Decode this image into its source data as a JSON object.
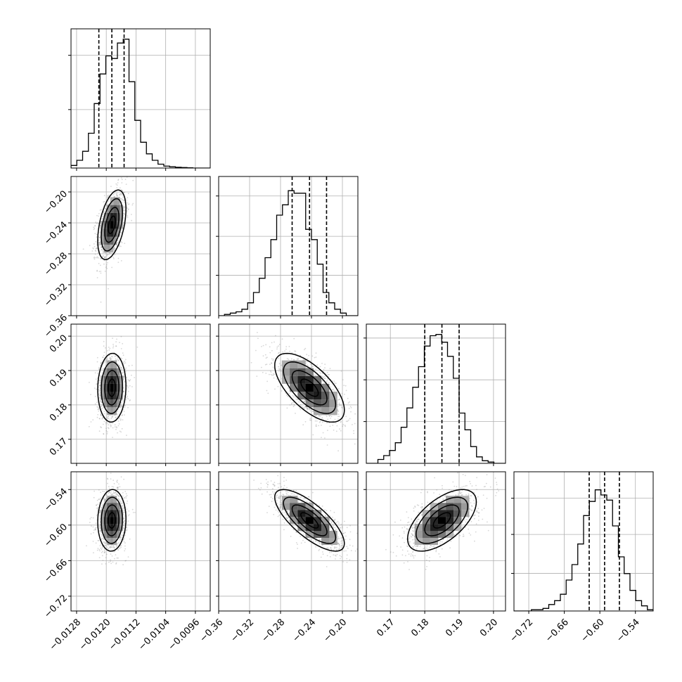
{
  "chart_data": {
    "type": "corner",
    "title": "",
    "params": [
      {
        "range": [
          -0.01295,
          -0.0092
        ],
        "ticks": [
          -0.0128,
          -0.012,
          -0.0112,
          -0.0104,
          -0.0096
        ],
        "tick_labels": [
          "−0.0128",
          "−0.0120",
          "−0.0112",
          "−0.0104",
          "−0.0096"
        ],
        "median": -0.01185,
        "q16": -0.0122,
        "q84": -0.01152,
        "std": 0.00019,
        "histogram": [
          0.02,
          0.06,
          0.13,
          0.27,
          0.5,
          0.73,
          0.87,
          0.85,
          0.97,
          1.0,
          0.67,
          0.37,
          0.2,
          0.11,
          0.06,
          0.03,
          0.015,
          0.01,
          0.006,
          0.004,
          0.002,
          0.0,
          0.0,
          0.0
        ],
        "hist_ylim": [
          0,
          1.08
        ],
        "hist_grid_fraction": [
          0.42,
          0.81
        ]
      },
      {
        "range": [
          -0.36,
          -0.18
        ],
        "ticks": [
          -0.36,
          -0.32,
          -0.28,
          -0.24,
          -0.2
        ],
        "tick_labels": [
          "−0.36",
          "−0.32",
          "−0.28",
          "−0.24",
          "−0.20"
        ],
        "median": -0.2425,
        "q16": -0.265,
        "q84": -0.2205,
        "std": 0.0225,
        "histogram": [
          0.0,
          0.01,
          0.02,
          0.03,
          0.05,
          0.1,
          0.18,
          0.29,
          0.45,
          0.59,
          0.78,
          0.86,
          0.97,
          0.95,
          0.95,
          0.67,
          0.59,
          0.4,
          0.18,
          0.1,
          0.05,
          0.02,
          0.0,
          0.0
        ],
        "hist_ylim": [
          0,
          1.08
        ],
        "hist_grid_fraction": [
          0.29,
          0.57,
          0.86
        ]
      },
      {
        "range": [
          0.163,
          0.2035
        ],
        "ticks": [
          0.17,
          0.18,
          0.19,
          0.2
        ],
        "tick_labels": [
          "0.17",
          "0.18",
          "0.19",
          "0.20"
        ],
        "median": 0.185,
        "q16": 0.18,
        "q84": 0.19,
        "std": 0.005,
        "histogram": [
          0.0,
          0.0,
          0.03,
          0.06,
          0.1,
          0.16,
          0.28,
          0.43,
          0.59,
          0.75,
          0.91,
          0.99,
          1.0,
          0.94,
          0.83,
          0.66,
          0.39,
          0.26,
          0.13,
          0.05,
          0.02,
          0.01,
          0.0,
          0.0
        ],
        "hist_ylim": [
          0,
          1.08
        ],
        "hist_grid_fraction": [
          0.3,
          0.6,
          0.9
        ]
      },
      {
        "range": [
          -0.745,
          -0.51
        ],
        "ticks": [
          -0.72,
          -0.66,
          -0.6,
          -0.54
        ],
        "tick_labels": [
          "−0.72",
          "−0.66",
          "−0.60",
          "−0.54"
        ],
        "median": -0.592,
        "q16": -0.618,
        "q84": -0.567,
        "std": 0.026,
        "histogram": [
          0.0,
          0.0,
          0.0,
          0.01,
          0.01,
          0.02,
          0.05,
          0.08,
          0.13,
          0.24,
          0.36,
          0.52,
          0.74,
          0.85,
          0.94,
          0.9,
          0.86,
          0.66,
          0.42,
          0.29,
          0.16,
          0.08,
          0.04,
          0.01
        ],
        "hist_ylim": [
          0,
          1.08
        ],
        "hist_grid_fraction": [
          0.27,
          0.55,
          0.81
        ]
      }
    ],
    "correlations": [
      [
        1,
        0.45,
        0.05,
        0.05
      ],
      [
        0.45,
        1,
        -0.65,
        -0.75
      ],
      [
        0.05,
        -0.65,
        1,
        0.6
      ],
      [
        0.05,
        -0.75,
        0.6,
        1
      ]
    ],
    "contour_levels_sigma": [
      0.5,
      1.0,
      1.5,
      2.0
    ],
    "scatter_points_per_panel": 1200,
    "grid": true,
    "colors": {
      "line": "#000000",
      "grid": "#b0b0b0",
      "scatter": "#8c8c8c",
      "background": "#ffffff"
    }
  }
}
